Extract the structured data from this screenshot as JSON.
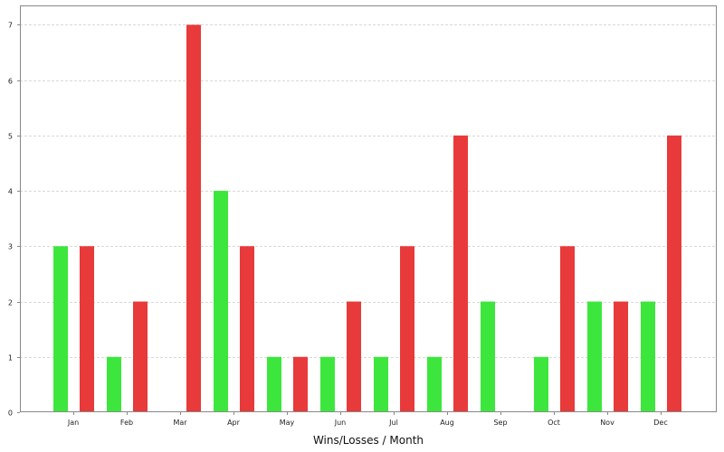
{
  "chart_data": {
    "type": "bar",
    "title": "",
    "xlabel": "Wins/Losses / Month",
    "ylabel": "",
    "categories": [
      "Jan",
      "Feb",
      "Mar",
      "Apr",
      "May",
      "Jun",
      "Jul",
      "Aug",
      "Sep",
      "Oct",
      "Nov",
      "Dec"
    ],
    "series": [
      {
        "values": [
          3,
          1,
          0,
          4,
          1,
          1,
          1,
          1,
          2,
          1,
          2,
          2
        ],
        "color": "#3de63d"
      },
      {
        "values": [
          3,
          2,
          7,
          3,
          1,
          2,
          3,
          5,
          0,
          3,
          2,
          5
        ],
        "color": "#e83a3a"
      }
    ],
    "ylim": [
      0,
      7.35
    ],
    "yticks": [
      0,
      1,
      2,
      3,
      4,
      5,
      6,
      7
    ],
    "grid": true,
    "legend": "none"
  }
}
